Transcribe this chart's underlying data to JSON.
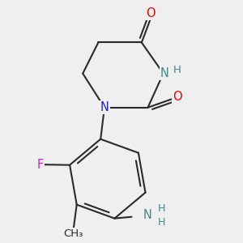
{
  "bg_color": "#efefef",
  "bond_color": "#2a2a2a",
  "bond_width": 1.5,
  "atom_colors": {
    "O": "#ee0000",
    "N": "#2222cc",
    "F": "#cc22cc",
    "NH": "#448888",
    "NH2": "#448888",
    "H": "#448888",
    "C": "#2a2a2a"
  },
  "font_size": 10.5
}
